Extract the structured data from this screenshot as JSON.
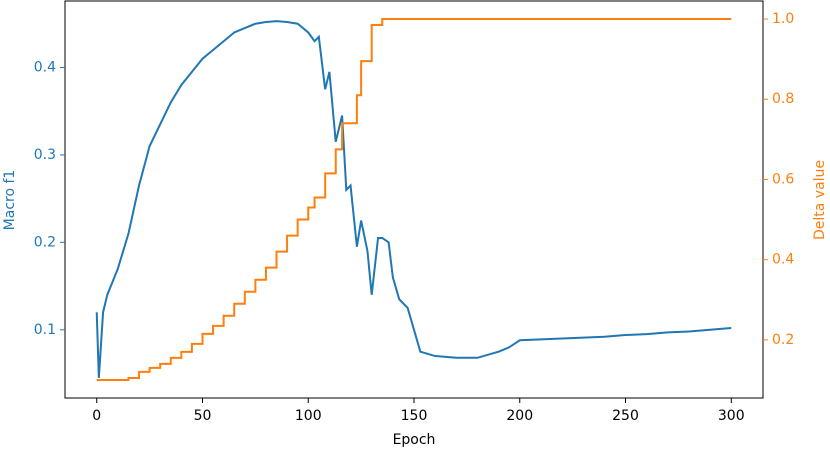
{
  "chart_data": {
    "type": "line",
    "xlabel": "Epoch",
    "ylabel": "Macro f1",
    "y2label": "Delta value",
    "x": [
      0,
      1,
      3,
      5,
      10,
      15,
      20,
      25,
      30,
      35,
      40,
      45,
      50,
      55,
      60,
      65,
      70,
      75,
      80,
      85,
      90,
      95,
      100,
      103,
      105,
      108,
      110,
      113,
      116,
      118,
      120,
      123,
      125,
      128,
      130,
      133,
      135,
      138,
      140,
      143,
      147,
      150,
      153,
      160,
      170,
      180,
      190,
      195,
      200,
      210,
      220,
      230,
      240,
      250,
      260,
      270,
      280,
      290,
      300
    ],
    "series": [
      {
        "name": "Macro f1",
        "color": "#1f77b4",
        "axis": "y",
        "values": [
          0.12,
          0.045,
          0.12,
          0.14,
          0.17,
          0.21,
          0.265,
          0.31,
          0.335,
          0.36,
          0.38,
          0.395,
          0.41,
          0.42,
          0.43,
          0.44,
          0.445,
          0.45,
          0.452,
          0.453,
          0.452,
          0.45,
          0.44,
          0.43,
          0.435,
          0.375,
          0.395,
          0.315,
          0.345,
          0.26,
          0.265,
          0.195,
          0.225,
          0.19,
          0.14,
          0.205,
          0.205,
          0.2,
          0.16,
          0.135,
          0.125,
          0.1,
          0.075,
          0.07,
          0.068,
          0.068,
          0.075,
          0.08,
          0.088,
          0.089,
          0.09,
          0.091,
          0.092,
          0.094,
          0.095,
          0.097,
          0.098,
          0.1,
          0.102
        ]
      },
      {
        "name": "Delta value",
        "color": "#ff7f0e",
        "axis": "y2",
        "drawstyle": "steps-post",
        "values": [
          0.1,
          0.1,
          0.1,
          0.1,
          0.1,
          0.105,
          0.12,
          0.13,
          0.14,
          0.155,
          0.17,
          0.19,
          0.215,
          0.235,
          0.26,
          0.29,
          0.32,
          0.35,
          0.38,
          0.42,
          0.46,
          0.5,
          0.53,
          0.555,
          0.555,
          0.615,
          0.615,
          0.675,
          0.74,
          0.74,
          0.74,
          0.81,
          0.895,
          0.895,
          0.985,
          0.985,
          1.0,
          1.0,
          1.0,
          1.0,
          1.0,
          1.0,
          1.0,
          1.0,
          1.0,
          1.0,
          1.0,
          1.0,
          1.0,
          1.0,
          1.0,
          1.0,
          1.0,
          1.0,
          1.0,
          1.0,
          1.0,
          1.0,
          1.0
        ]
      }
    ],
    "xlim": [
      -15,
      315
    ],
    "xticks": [
      0,
      50,
      100,
      150,
      200,
      250,
      300
    ],
    "ylim": [
      0.022,
      0.476
    ],
    "yticks": [
      0.1,
      0.2,
      0.3,
      0.4
    ],
    "y2lim": [
      0.055,
      1.045
    ],
    "y2ticks": [
      0.2,
      0.4,
      0.6,
      0.8,
      {
        "value": 1,
        "label": "1.0"
      }
    ]
  }
}
